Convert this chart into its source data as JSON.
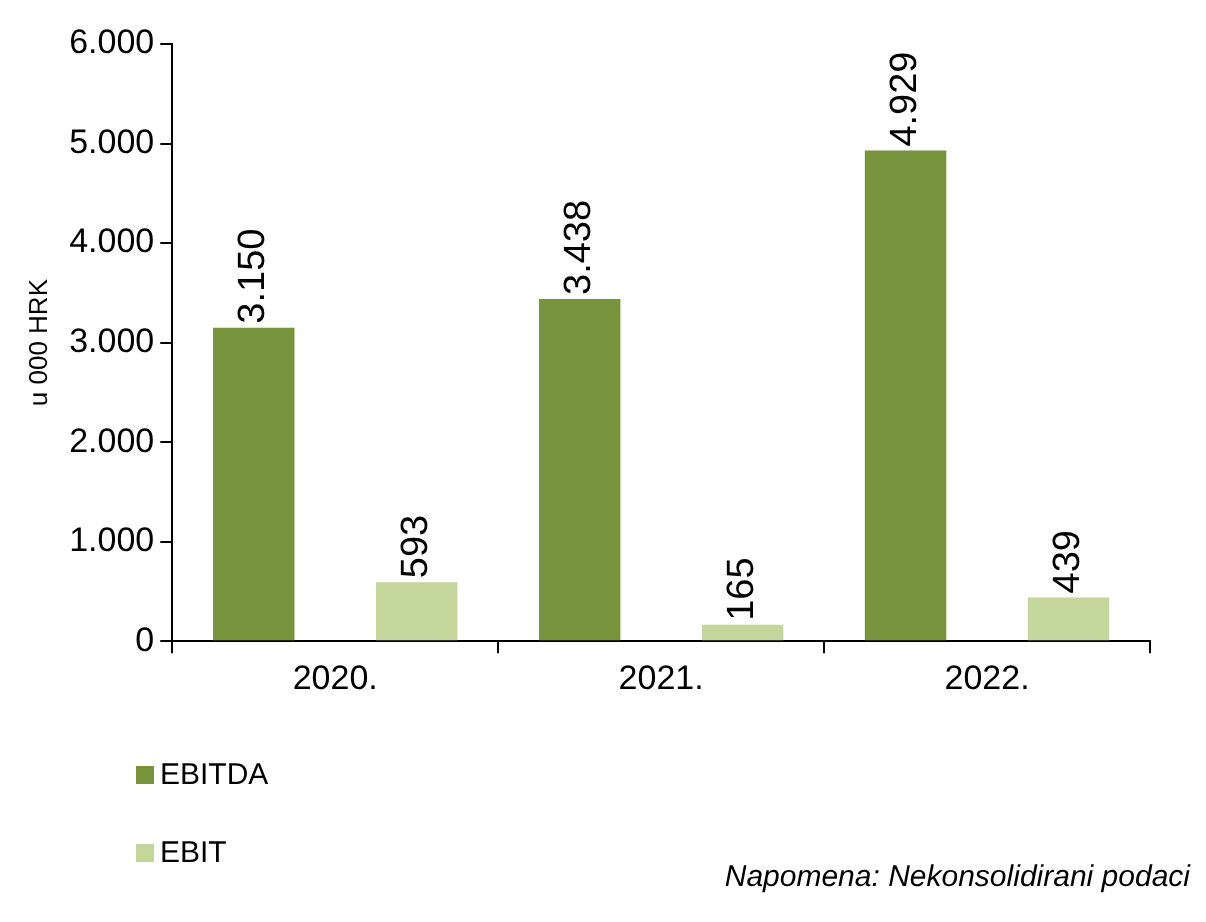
{
  "chart_data": {
    "type": "bar",
    "ylabel": "u 000 HRK",
    "categories": [
      "2020.",
      "2021.",
      "2022."
    ],
    "series": [
      {
        "name": "EBITDA",
        "color": "#77933c",
        "values": [
          3150,
          3438,
          4929
        ],
        "value_labels": [
          "3.150",
          "3.438",
          "4.929"
        ]
      },
      {
        "name": "EBIT",
        "color": "#c3d69b",
        "values": [
          593,
          165,
          439
        ],
        "value_labels": [
          "593",
          "165",
          "439"
        ]
      }
    ],
    "ylim": [
      0,
      6000
    ],
    "yticks": [
      {
        "value": 0,
        "label": "0"
      },
      {
        "value": 1000,
        "label": "1.000"
      },
      {
        "value": 2000,
        "label": "2.000"
      },
      {
        "value": 3000,
        "label": "3.000"
      },
      {
        "value": 4000,
        "label": "4.000"
      },
      {
        "value": 5000,
        "label": "5.000"
      },
      {
        "value": 6000,
        "label": "6.000"
      }
    ],
    "grid": false,
    "legend": "bottom left",
    "annotations": [
      "Napomena: Nekonsolidirani podaci"
    ]
  }
}
